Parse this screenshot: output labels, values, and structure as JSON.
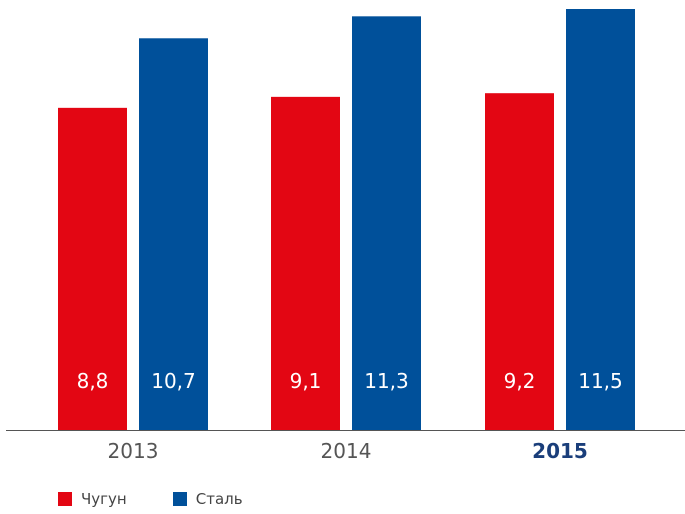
{
  "chart_data": {
    "type": "bar",
    "categories": [
      "2013",
      "2014",
      "2015"
    ],
    "highlighted_category": "2015",
    "series": [
      {
        "name": "Чугун",
        "color": "#e30613",
        "values": [
          8.8,
          9.1,
          9.2
        ],
        "labels": [
          "8,8",
          "9,1",
          "9,2"
        ]
      },
      {
        "name": "Сталь",
        "color": "#00509a",
        "values": [
          10.7,
          11.3,
          11.5
        ],
        "labels": [
          "10,7",
          "11,3",
          "11,5"
        ]
      }
    ],
    "ylim": [
      0,
      11.5
    ],
    "grid": false,
    "legend_position": "bottom-left",
    "colors": {
      "axis": "#555555",
      "tick_label": "#555555",
      "tick_label_highlight": "#1a3e7a",
      "value_label": "#ffffff"
    }
  }
}
